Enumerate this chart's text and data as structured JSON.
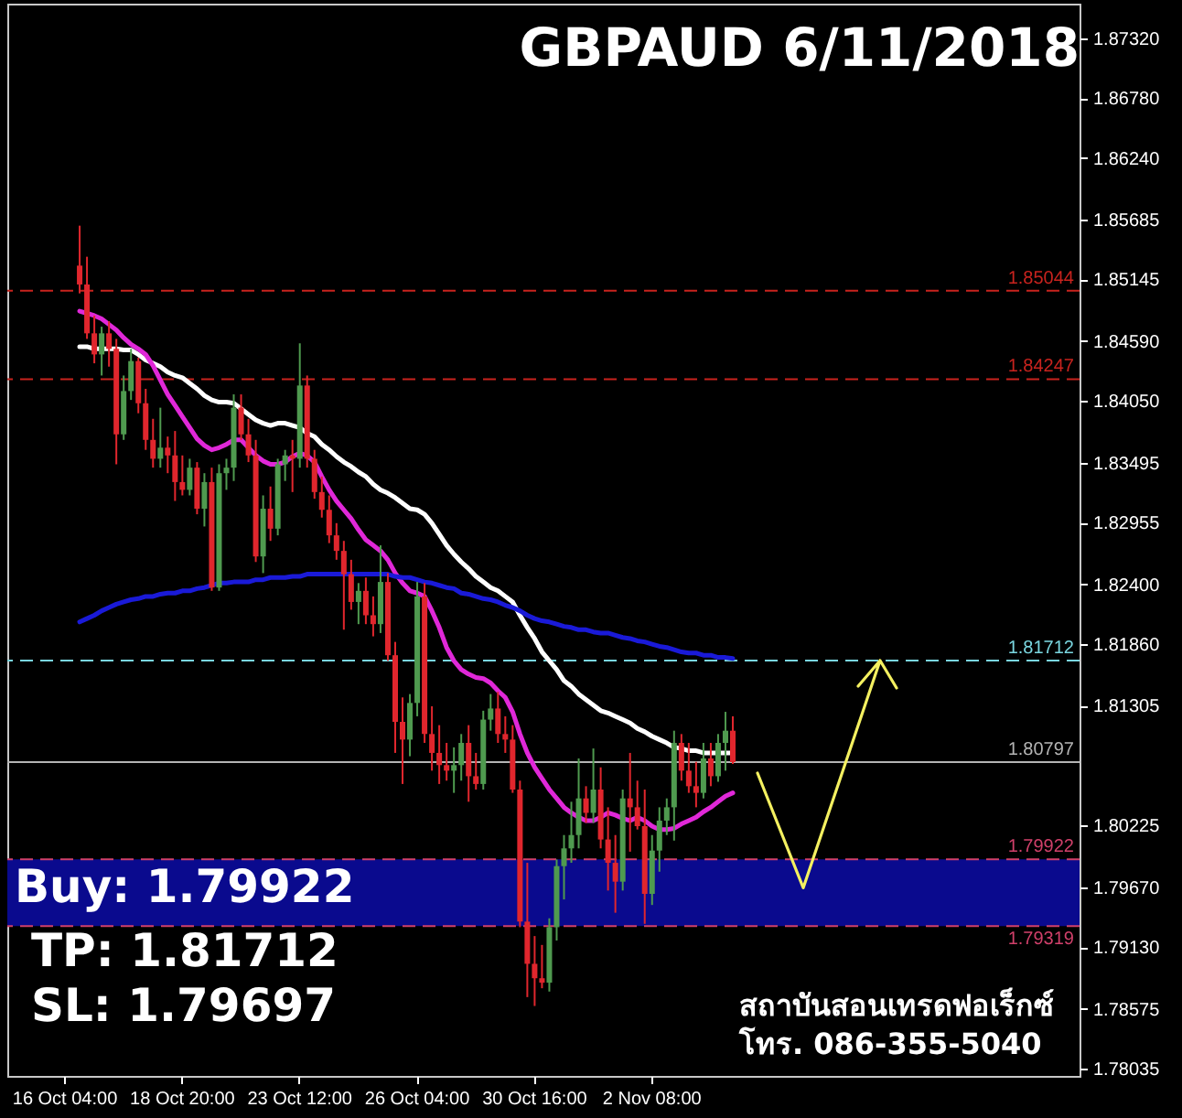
{
  "chart_data": {
    "type": "candlestick",
    "title": "GBPAUD  6/11/2018",
    "categories": [
      "16 Oct 04:00",
      null,
      null,
      null,
      null,
      null,
      null,
      null,
      null,
      null,
      null,
      null,
      null,
      null,
      null,
      null,
      "18 Oct 20:00",
      null,
      null,
      null,
      null,
      null,
      null,
      null,
      null,
      null,
      null,
      null,
      null,
      null,
      null,
      null,
      "23 Oct 12:00",
      null,
      null,
      null,
      null,
      null,
      null,
      null,
      null,
      null,
      null,
      null,
      null,
      null,
      null,
      null,
      "26 Oct 04:00",
      null,
      null,
      null,
      null,
      null,
      null,
      null,
      null,
      null,
      null,
      null,
      null,
      null,
      null,
      null,
      "30 Oct 16:00",
      null,
      null,
      null,
      null,
      null,
      null,
      null,
      null,
      null,
      null,
      null,
      null,
      null,
      null,
      null,
      "2 Nov 08:00",
      null,
      null,
      null,
      null,
      null,
      null,
      null,
      null,
      null,
      null,
      null
    ],
    "ohlc": [
      null,
      null,
      [
        1.8527,
        1.8563,
        1.8502,
        1.851
      ],
      [
        1.851,
        1.8535,
        1.8461,
        1.8466
      ],
      [
        1.8466,
        1.8482,
        1.8439,
        1.8447
      ],
      [
        1.8447,
        1.8472,
        1.8428,
        1.8466
      ],
      [
        1.8466,
        1.8477,
        1.8436,
        1.8452
      ],
      [
        1.8452,
        1.8461,
        1.8348,
        1.8375
      ],
      [
        1.8375,
        1.8428,
        1.837,
        1.8414
      ],
      [
        1.8414,
        1.8452,
        1.8406,
        1.8441
      ],
      [
        1.8441,
        1.8444,
        1.8394,
        1.8403
      ],
      [
        1.8403,
        1.8416,
        1.8361,
        1.837
      ],
      [
        1.837,
        1.8389,
        1.8345,
        1.8353
      ],
      [
        1.8353,
        1.8399,
        1.8345,
        1.8363
      ],
      [
        1.8363,
        1.8373,
        1.834,
        1.8356
      ],
      [
        1.8356,
        1.8378,
        1.8315,
        1.8332
      ],
      [
        1.8332,
        1.8356,
        1.832,
        1.8325
      ],
      [
        1.8325,
        1.8353,
        1.832,
        1.8345
      ],
      [
        1.8345,
        1.835,
        1.8303,
        1.8308
      ],
      [
        1.8308,
        1.834,
        1.8292,
        1.8332
      ],
      [
        1.8332,
        1.8345,
        1.8234,
        1.8237
      ],
      [
        1.8237,
        1.8348,
        1.8234,
        1.834
      ],
      [
        1.834,
        1.8353,
        1.8325,
        1.8345
      ],
      [
        1.8345,
        1.8411,
        1.8333,
        1.8399
      ],
      [
        1.8399,
        1.8411,
        1.837,
        1.8375
      ],
      [
        1.8375,
        1.8389,
        1.835,
        1.8356
      ],
      [
        1.8356,
        1.837,
        1.826,
        1.8265
      ],
      [
        1.8265,
        1.832,
        1.825,
        1.8308
      ],
      [
        1.8308,
        1.8328,
        1.8279,
        1.829
      ],
      [
        1.829,
        1.8353,
        1.8284,
        1.8348
      ],
      [
        1.8348,
        1.8361,
        1.8333,
        1.8356
      ],
      [
        1.8356,
        1.837,
        1.8323,
        1.8353
      ],
      [
        1.8353,
        1.8457,
        1.8345,
        1.8419
      ],
      [
        1.8419,
        1.8428,
        1.8345,
        1.8353
      ],
      [
        1.8353,
        1.8361,
        1.8317,
        1.8323
      ],
      [
        1.8323,
        1.8337,
        1.83,
        1.8307
      ],
      [
        1.8307,
        1.832,
        1.8277,
        1.8284
      ],
      [
        1.8284,
        1.8295,
        1.8262,
        1.827
      ],
      [
        1.827,
        1.8279,
        1.8199,
        1.8249
      ],
      [
        1.8249,
        1.8262,
        1.8217,
        1.8224
      ],
      [
        1.8224,
        1.8241,
        1.8204,
        1.8234
      ],
      [
        1.8234,
        1.8246,
        1.8204,
        1.8212
      ],
      [
        1.8212,
        1.8229,
        1.8193,
        1.8204
      ],
      [
        1.8204,
        1.8275,
        1.8196,
        1.8242
      ],
      [
        1.8242,
        1.825,
        1.8171,
        1.8176
      ],
      [
        1.8176,
        1.8188,
        1.8088,
        1.8116
      ],
      [
        1.8116,
        1.8138,
        1.806,
        1.81
      ],
      [
        1.81,
        1.8141,
        1.8085,
        1.8133
      ],
      [
        1.8133,
        1.8242,
        1.8121,
        1.8229
      ],
      [
        1.8229,
        1.8241,
        1.8097,
        1.8105
      ],
      [
        1.8105,
        1.813,
        1.8072,
        1.8088
      ],
      [
        1.8088,
        1.8113,
        1.806,
        1.8077
      ],
      [
        1.8077,
        1.8097,
        1.8063,
        1.8072
      ],
      [
        1.8072,
        1.8093,
        1.8052,
        1.8077
      ],
      [
        1.8077,
        1.8105,
        1.8063,
        1.8097
      ],
      [
        1.8097,
        1.8113,
        1.8044,
        1.8067
      ],
      [
        1.8067,
        1.8088,
        1.8055,
        1.806
      ],
      [
        1.806,
        1.8126,
        1.8055,
        1.8118
      ],
      [
        1.8118,
        1.8141,
        1.8108,
        1.8128
      ],
      [
        1.8128,
        1.8143,
        1.8097,
        1.8105
      ],
      [
        1.8105,
        1.8121,
        1.8088,
        1.81
      ],
      [
        1.81,
        1.8113,
        1.8052,
        1.8055
      ],
      [
        1.8055,
        1.8063,
        1.7931,
        1.7936
      ],
      [
        1.7936,
        1.7989,
        1.7868,
        1.7898
      ],
      [
        1.7898,
        1.7923,
        1.786,
        1.7885
      ],
      [
        1.7885,
        1.7915,
        1.7876,
        1.7881
      ],
      [
        1.7881,
        1.7939,
        1.7873,
        1.7931
      ],
      [
        1.7931,
        1.7992,
        1.7919,
        1.7986
      ],
      [
        1.7986,
        1.8014,
        1.7956,
        1.8002
      ],
      [
        1.8002,
        1.8044,
        1.7989,
        1.8014
      ],
      [
        1.8014,
        1.8083,
        1.8002,
        1.8047
      ],
      [
        1.8047,
        1.8058,
        1.8025,
        1.8034
      ],
      [
        1.8034,
        1.8092,
        1.8025,
        1.8055
      ],
      [
        1.8055,
        1.8075,
        1.8002,
        1.801
      ],
      [
        1.801,
        1.8039,
        1.7964,
        1.7989
      ],
      [
        1.7989,
        1.8014,
        1.7944,
        1.7972
      ],
      [
        1.7972,
        1.8055,
        1.7964,
        1.8047
      ],
      [
        1.8047,
        1.8088,
        1.7999,
        1.8039
      ],
      [
        1.8039,
        1.8063,
        1.8019,
        1.8022
      ],
      [
        1.8022,
        1.8055,
        1.7934,
        1.7961
      ],
      [
        1.7961,
        1.8014,
        1.7951,
        1.8
      ],
      [
        1.8,
        1.8039,
        1.7981,
        1.8027
      ],
      [
        1.8027,
        1.8047,
        1.8014,
        1.8039
      ],
      [
        1.8039,
        1.8108,
        1.8009,
        1.8097
      ],
      [
        1.8097,
        1.8105,
        1.8063,
        1.8072
      ],
      [
        1.8072,
        1.8097,
        1.8052,
        1.8058
      ],
      [
        1.8058,
        1.808,
        1.8039,
        1.8052
      ],
      [
        1.8052,
        1.8097,
        1.8047,
        1.8083
      ],
      [
        1.8083,
        1.8097,
        1.8058,
        1.8067
      ],
      [
        1.8067,
        1.8105,
        1.8062,
        1.8097
      ],
      [
        1.8097,
        1.8125,
        1.8072,
        1.8108
      ],
      [
        1.8108,
        1.8121,
        1.8078,
        1.80797
      ]
    ],
    "colors": [
      null,
      null,
      "#e0262d",
      "#e0262d",
      "#e0262d",
      "#4f9a4f",
      "#e0262d",
      "#e0262d",
      "#4f9a4f",
      "#4f9a4f",
      "#e0262d",
      "#e0262d",
      "#e0262d",
      "#4f9a4f",
      "#e0262d",
      "#e0262d",
      "#e0262d",
      "#4f9a4f",
      "#e0262d",
      "#4f9a4f",
      "#e0262d",
      "#4f9a4f",
      "#4f9a4f",
      "#4f9a4f",
      "#e0262d",
      "#e0262d",
      "#e0262d",
      "#4f9a4f",
      "#e0262d",
      "#4f9a4f",
      "#4f9a4f",
      "#e0262d",
      "#4f9a4f",
      "#e0262d",
      "#e0262d",
      "#e0262d",
      "#e0262d",
      "#e0262d",
      "#e0262d",
      "#e0262d",
      "#4f9a4f",
      "#e0262d",
      "#e0262d",
      "#4f9a4f",
      "#e0262d",
      "#e0262d",
      "#e0262d",
      "#4f9a4f",
      "#4f9a4f",
      "#e0262d",
      "#e0262d",
      "#e0262d",
      "#e0262d",
      "#4f9a4f",
      "#4f9a4f",
      "#e0262d",
      "#e0262d",
      "#4f9a4f",
      "#4f9a4f",
      "#e0262d",
      "#e0262d",
      "#e0262d",
      "#e0262d",
      "#e0262d",
      "#e0262d",
      "#e0262d",
      "#4f9a4f",
      "#4f9a4f",
      "#4f9a4f",
      "#4f9a4f",
      "#4f9a4f",
      "#e0262d",
      "#4f9a4f",
      "#e0262d",
      "#e0262d",
      "#e0262d",
      "#4f9a4f",
      "#e0262d",
      "#e0262d",
      "#e0262d",
      "#4f9a4f",
      "#4f9a4f",
      "#4f9a4f",
      "#4f9a4f",
      "#e0262d",
      "#e0262d",
      "#e0262d",
      "#4f9a4f",
      "#e0262d",
      "#4f9a4f",
      "#4f9a4f",
      "#e0262d"
    ],
    "series": [
      {
        "type": "line",
        "color": "#ffffff",
        "values": [
          null,
          null,
          1.8454,
          1.8454,
          1.8452,
          1.8452,
          1.8452,
          1.8452,
          1.8451,
          1.8451,
          1.8447,
          1.8442,
          1.8439,
          1.8436,
          1.8431,
          1.8428,
          1.8426,
          1.8421,
          1.8416,
          1.841,
          1.8406,
          1.8404,
          1.8404,
          1.8403,
          1.8398,
          1.8393,
          1.8388,
          1.8385,
          1.8383,
          1.8385,
          1.8385,
          1.8383,
          1.8381,
          1.8376,
          1.8373,
          1.8366,
          1.8361,
          1.8355,
          1.835,
          1.8346,
          1.8341,
          1.8337,
          1.833,
          1.8325,
          1.8322,
          1.8318,
          1.8313,
          1.8308,
          1.8307,
          1.8303,
          1.8295,
          1.8285,
          1.8275,
          1.8267,
          1.826,
          1.8254,
          1.8247,
          1.8242,
          1.8237,
          1.8234,
          1.8229,
          1.8224,
          1.8212,
          1.8201,
          1.8191,
          1.8179,
          1.8171,
          1.8163,
          1.8153,
          1.8148,
          1.8141,
          1.8136,
          1.8131,
          1.8126,
          1.8124,
          1.8121,
          1.8118,
          1.8115,
          1.811,
          1.8107,
          1.8103,
          1.81,
          1.8097,
          1.8093,
          1.8092,
          1.809,
          1.809,
          1.8088,
          1.8088,
          1.8088,
          1.8088,
          1.8088
        ]
      },
      {
        "type": "line",
        "color": "#e028d8",
        "values": [
          null,
          null,
          1.8486,
          1.8484,
          1.8482,
          1.8479,
          1.8474,
          1.8469,
          1.8462,
          1.8456,
          1.8452,
          1.8447,
          1.8437,
          1.8424,
          1.8411,
          1.8401,
          1.8391,
          1.8381,
          1.8371,
          1.8365,
          1.8361,
          1.8363,
          1.8366,
          1.837,
          1.837,
          1.8363,
          1.8356,
          1.8351,
          1.8348,
          1.8348,
          1.835,
          1.8355,
          1.8358,
          1.8356,
          1.835,
          1.8337,
          1.8325,
          1.8315,
          1.8307,
          1.8299,
          1.8289,
          1.828,
          1.8275,
          1.827,
          1.8262,
          1.825,
          1.8241,
          1.8234,
          1.8232,
          1.8229,
          1.8216,
          1.8201,
          1.8183,
          1.8171,
          1.8163,
          1.8159,
          1.8156,
          1.8155,
          1.8151,
          1.8144,
          1.8138,
          1.8125,
          1.8105,
          1.8088,
          1.8075,
          1.8065,
          1.8055,
          1.8047,
          1.8039,
          1.8034,
          1.803,
          1.8027,
          1.8027,
          1.803,
          1.8034,
          1.8032,
          1.8029,
          1.8027,
          1.803,
          1.8027,
          1.8022,
          1.8019,
          1.8019,
          1.802,
          1.8024,
          1.8027,
          1.803,
          1.8035,
          1.8039,
          1.8044,
          1.8049,
          1.8052
        ]
      },
      {
        "type": "line",
        "color": "#1a1ad8",
        "values": [
          null,
          null,
          1.8206,
          1.8209,
          1.8212,
          1.8216,
          1.8219,
          1.8222,
          1.8224,
          1.8226,
          1.8227,
          1.8229,
          1.8229,
          1.8231,
          1.8232,
          1.8232,
          1.8234,
          1.8234,
          1.8236,
          1.8237,
          1.8239,
          1.8241,
          1.8241,
          1.8242,
          1.8242,
          1.8242,
          1.8244,
          1.8244,
          1.8246,
          1.8246,
          1.8246,
          1.8247,
          1.8247,
          1.8249,
          1.8249,
          1.8249,
          1.8249,
          1.8249,
          1.8249,
          1.8249,
          1.8249,
          1.8249,
          1.8249,
          1.8249,
          1.8249,
          1.8247,
          1.8246,
          1.8246,
          1.8244,
          1.8242,
          1.8241,
          1.8239,
          1.8237,
          1.8236,
          1.8232,
          1.8231,
          1.8229,
          1.8227,
          1.8226,
          1.8224,
          1.8221,
          1.8219,
          1.8216,
          1.8212,
          1.8209,
          1.8207,
          1.8206,
          1.8204,
          1.8202,
          1.8201,
          1.8199,
          1.8199,
          1.8197,
          1.8196,
          1.8196,
          1.8194,
          1.8192,
          1.8191,
          1.8189,
          1.8188,
          1.8186,
          1.8184,
          1.8183,
          1.8181,
          1.8179,
          1.8178,
          1.8178,
          1.8176,
          1.8176,
          1.8174,
          1.8174,
          1.8173
        ]
      }
    ],
    "ylim": [
      1.7797,
      1.8763
    ],
    "yticks": [
      {
        "value": 1.8732,
        "label": "1.87320"
      },
      {
        "value": 1.8678,
        "label": "1.86780"
      },
      {
        "value": 1.8624,
        "label": "1.86240"
      },
      {
        "value": 1.85685,
        "label": "1.85685"
      },
      {
        "value": 1.85145,
        "label": "1.85145"
      },
      {
        "value": 1.8459,
        "label": "1.84590"
      },
      {
        "value": 1.8405,
        "label": "1.84050"
      },
      {
        "value": 1.83495,
        "label": "1.83495"
      },
      {
        "value": 1.82955,
        "label": "1.82955"
      },
      {
        "value": 1.824,
        "label": "1.82400"
      },
      {
        "value": 1.8186,
        "label": "1.81860"
      },
      {
        "value": 1.81305,
        "label": "1.81305"
      },
      {
        "value": 1.80225,
        "label": "1.80225"
      },
      {
        "value": 1.7967,
        "label": "1.79670"
      },
      {
        "value": 1.7913,
        "label": "1.79130"
      },
      {
        "value": 1.78575,
        "label": "1.78575"
      },
      {
        "value": 1.78035,
        "label": "1.78035"
      }
    ],
    "ref_lines": [
      {
        "axis": "y",
        "value": 1.85044,
        "label": "1.85044",
        "color": "#c8231e",
        "line_style": "dashed"
      },
      {
        "axis": "y",
        "value": 1.84247,
        "label": "1.84247",
        "color": "#c8231e",
        "line_style": "dashed"
      },
      {
        "axis": "y",
        "value": 1.81712,
        "label": "1.81712",
        "color": "#7ad6e0",
        "line_style": "dashed"
      },
      {
        "axis": "y",
        "value": 1.80797,
        "label": "1.80797",
        "color": "#b4b4b4",
        "line_style": "solid"
      },
      {
        "axis": "y",
        "value": 1.79922,
        "label": "1.79922",
        "color": "#d0406a",
        "line_style": "dashed"
      },
      {
        "axis": "y",
        "value": 1.79319,
        "label": "1.79319",
        "color": "#d0406a",
        "line_style": "dashed"
      }
    ],
    "bands": [
      {
        "axis": "y",
        "from": 1.79319,
        "to": 1.79922,
        "color": "#0a0a8e"
      }
    ],
    "annotations": [
      "Buy: 1.79922",
      "TP: 1.81712",
      "SL: 1.79697",
      "สถาบันสอนเทรดฟอเร็กซ์",
      "โทร. 086-355-5040"
    ]
  }
}
